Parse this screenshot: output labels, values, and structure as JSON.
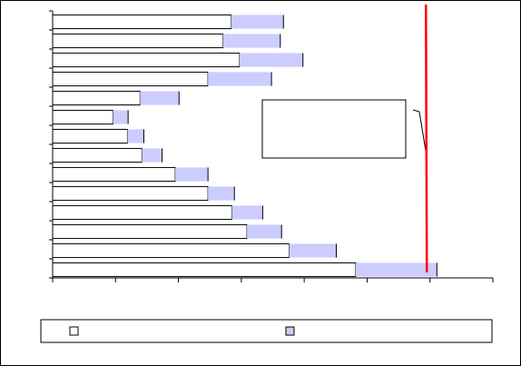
{
  "chart_data": {
    "type": "bar",
    "orientation": "horizontal",
    "stacked": true,
    "title": "",
    "xlabel": "",
    "ylabel": "",
    "categories": [
      "",
      "",
      "",
      "",
      "",
      "",
      "",
      "",
      "",
      "",
      "",
      "",
      "",
      ""
    ],
    "series": [
      {
        "name": "",
        "color": "#ffffff",
        "values": [
          284,
          271,
          297,
          247,
          139,
          96,
          119,
          142,
          195,
          247,
          285,
          309,
          376,
          482
        ]
      },
      {
        "name": "",
        "color": "#ccccff",
        "values": [
          83,
          91,
          101,
          101,
          62,
          24,
          26,
          32,
          52,
          42,
          49,
          55,
          75,
          129
        ]
      }
    ],
    "reference_line": {
      "value": 595,
      "color": "#ff0000"
    },
    "xlim": [
      0,
      700
    ],
    "x_ticks": [
      0,
      100,
      200,
      300,
      400,
      500,
      600,
      700
    ],
    "grid": false,
    "legend": {
      "placement": "bottom",
      "entries": [
        {
          "swatch": "#ffffff",
          "label": ""
        },
        {
          "swatch": "#ccccff",
          "label": ""
        }
      ]
    },
    "annotation": {
      "text": ""
    }
  }
}
